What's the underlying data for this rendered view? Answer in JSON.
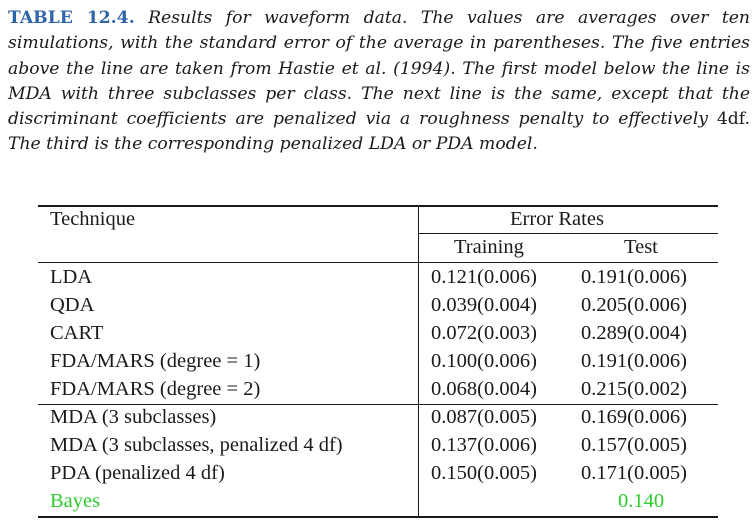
{
  "caption": {
    "label": "TABLE 12.4.",
    "text_before_4df": "Results for waveform data. The values are averages over ten simulations, with the standard error of the average in parentheses. The five entries above the line are taken from Hastie et al. (1994). The first model below the line is MDA with three subclasses per class. The next line is the same, except that the discriminant coefficients are penalized via a roughness penalty to effectively",
    "upright_4df": "4df.",
    "text_after_4df": "The third is the corresponding penalized LDA or PDA model."
  },
  "table": {
    "header_technique": "Technique",
    "header_error_rates": "Error Rates",
    "header_training": "Training",
    "header_test": "Test",
    "rows": [
      {
        "technique": "LDA",
        "training": "0.121(0.006)",
        "test": "0.191(0.006)"
      },
      {
        "technique": "QDA",
        "training": "0.039(0.004)",
        "test": "0.205(0.006)"
      },
      {
        "technique": "CART",
        "training": "0.072(0.003)",
        "test": "0.289(0.004)"
      },
      {
        "technique": "FDA/MARS (degree = 1)",
        "training": "0.100(0.006)",
        "test": "0.191(0.006)"
      },
      {
        "technique": "FDA/MARS (degree = 2)",
        "training": "0.068(0.004)",
        "test": "0.215(0.002)"
      },
      {
        "technique": "MDA (3 subclasses)",
        "training": "0.087(0.005)",
        "test": "0.169(0.006)"
      },
      {
        "technique": "MDA (3 subclasses, penalized 4 df)",
        "training": "0.137(0.006)",
        "test": "0.157(0.005)"
      },
      {
        "technique": "PDA (penalized 4 df)",
        "training": "0.150(0.005)",
        "test": "0.171(0.005)"
      }
    ],
    "bayes_label": "Bayes",
    "bayes_test": "0.140",
    "bayes_color": "#2ecc2e",
    "label_color": "#2d63a8"
  }
}
